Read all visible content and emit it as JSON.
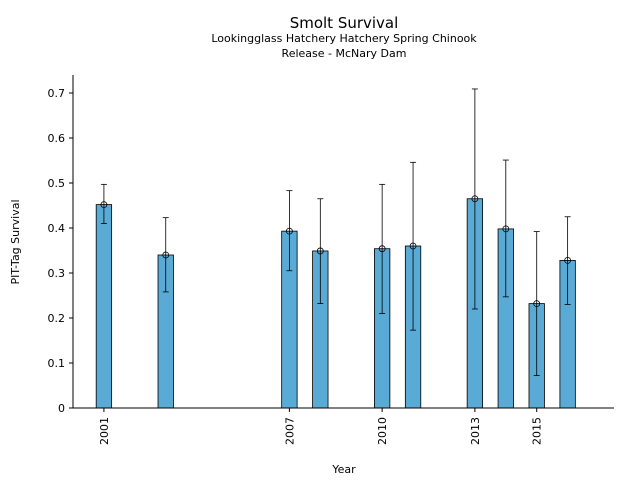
{
  "chart_data": {
    "type": "bar",
    "title": "Smolt Survival",
    "subtitle_lines": [
      "Lookingglass Hatchery Hatchery Spring Chinook",
      "Release - McNary Dam"
    ],
    "xlabel": "Year",
    "ylabel": "PIT-Tag Survival",
    "xlim": [
      2000.0,
      2017.5
    ],
    "ylim": [
      0,
      0.74
    ],
    "x_ticks": [
      2001,
      2007,
      2010,
      2013,
      2015
    ],
    "y_ticks": [
      0,
      0.1,
      0.2,
      0.3,
      0.4,
      0.5,
      0.6,
      0.7
    ],
    "y_tick_labels": [
      "0",
      "0.1",
      "0.2",
      "0.3",
      "0.4",
      "0.5",
      "0.6",
      "0.7"
    ],
    "bar_color": "#5aaad6",
    "bar_width_years": 0.5,
    "grid": false,
    "series": [
      {
        "x": [
          2001,
          2003,
          2007,
          2008,
          2010,
          2011,
          2013,
          2014,
          2015,
          2016
        ],
        "values": [
          0.452,
          0.34,
          0.393,
          0.349,
          0.354,
          0.36,
          0.465,
          0.398,
          0.232,
          0.328
        ],
        "error_low": [
          0.41,
          0.258,
          0.305,
          0.232,
          0.21,
          0.173,
          0.22,
          0.247,
          0.072,
          0.23
        ],
        "error_high": [
          0.497,
          0.423,
          0.483,
          0.465,
          0.497,
          0.546,
          0.709,
          0.551,
          0.392,
          0.425
        ]
      }
    ]
  }
}
